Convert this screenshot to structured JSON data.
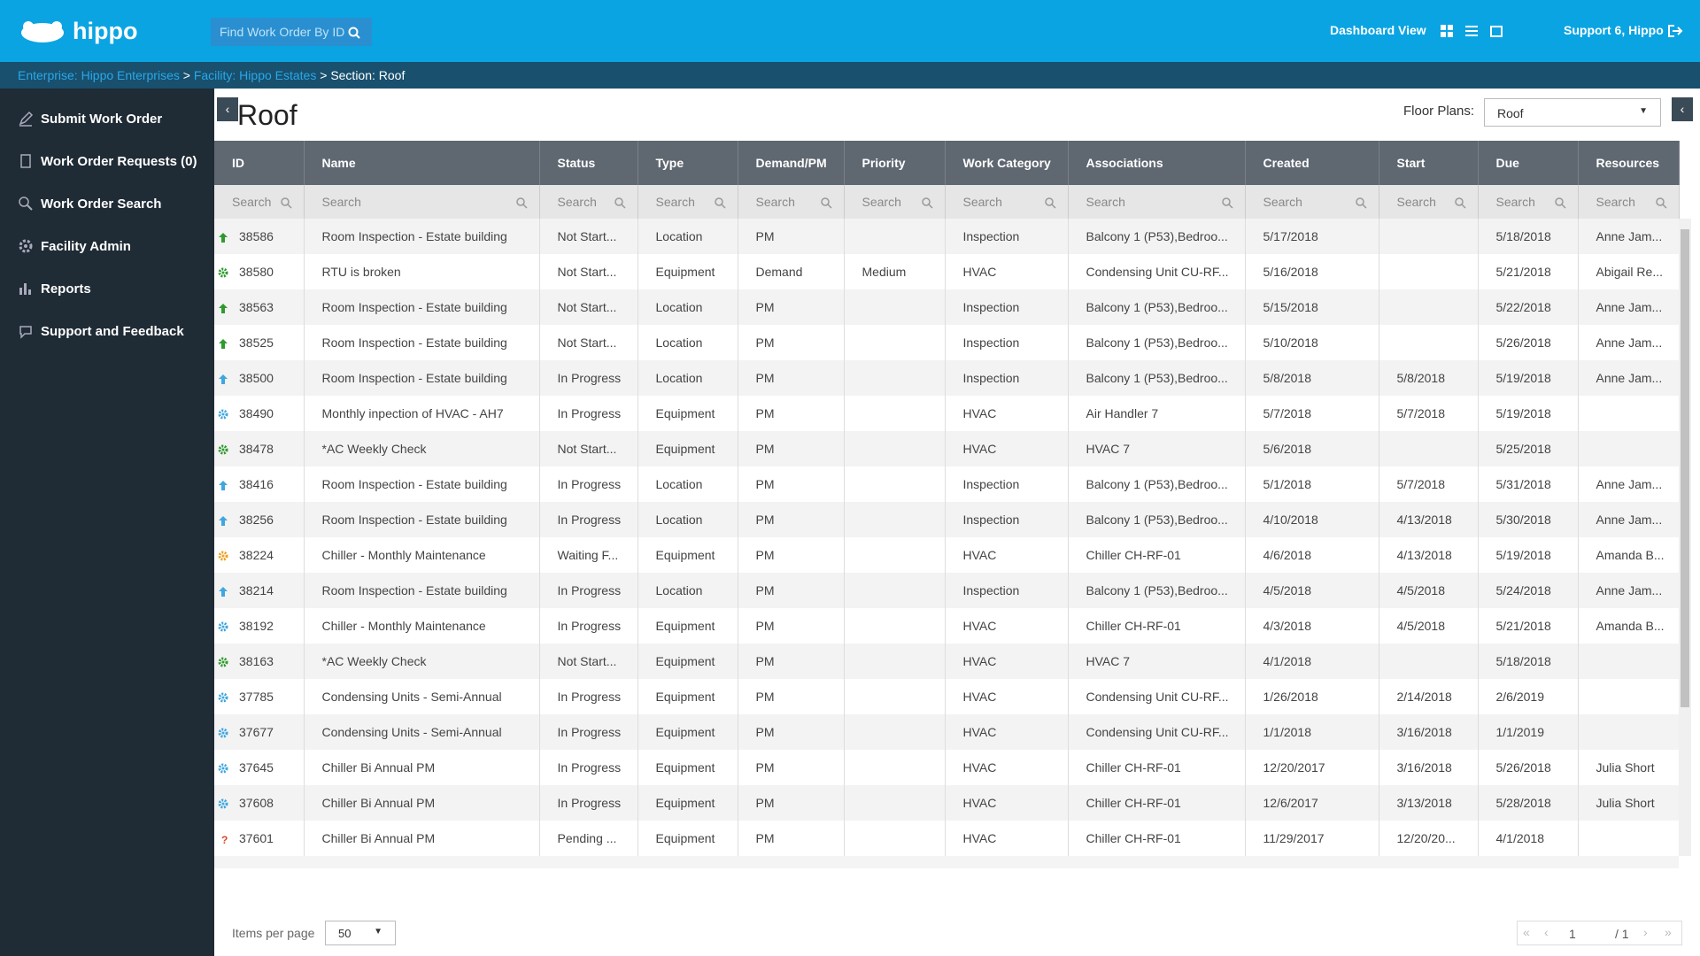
{
  "header": {
    "logo": "hippo",
    "search_placeholder": "Find Work Order By ID",
    "view": "Dashboard View",
    "user": "Support 6, Hippo"
  },
  "breadcrumb": [
    "Enterprise: Hippo Enterprises",
    "Facility: Hippo Estates",
    "Section: Roof"
  ],
  "sidebar": [
    "Submit Work Order",
    "Work Order Requests (0)",
    "Work Order Search",
    "Facility Admin",
    "Reports",
    "Support and Feedback"
  ],
  "title": "Roof",
  "floor_plans": {
    "label": "Floor Plans:",
    "value": "Roof"
  },
  "table": {
    "columns": [
      "ID",
      "Name",
      "Status",
      "Type",
      "Demand/PM",
      "Priority",
      "Work Category",
      "Associations",
      "Created",
      "Start",
      "Due",
      "Resources"
    ],
    "search_placeholder": "Search",
    "rows": [
      [
        "38586",
        "Room Inspection - Estate building",
        "Not Start...",
        "Location",
        "PM",
        null,
        "Inspection",
        "Balcony 1 (P53),Bedroo...",
        "5/17/2018",
        null,
        "5/18/2018",
        "Anne Jam..."
      ],
      [
        "38580",
        "RTU is broken",
        "Not Start...",
        "Equipment",
        "Demand",
        "Medium",
        "HVAC",
        "Condensing Unit CU-RF...",
        "5/16/2018",
        null,
        "5/21/2018",
        "Abigail Re..."
      ],
      [
        "38563",
        "Room Inspection - Estate building",
        "Not Start...",
        "Location",
        "PM",
        null,
        "Inspection",
        "Balcony 1 (P53),Bedroo...",
        "5/15/2018",
        null,
        "5/22/2018",
        "Anne Jam..."
      ],
      [
        "38525",
        "Room Inspection - Estate building",
        "Not Start...",
        "Location",
        "PM",
        null,
        "Inspection",
        "Balcony 1 (P53),Bedroo...",
        "5/10/2018",
        null,
        "5/26/2018",
        "Anne Jam..."
      ],
      [
        "38500",
        "Room Inspection - Estate building",
        "In Progress",
        "Location",
        "PM",
        null,
        "Inspection",
        "Balcony 1 (P53),Bedroo...",
        "5/8/2018",
        "5/8/2018",
        "5/19/2018",
        "Anne Jam..."
      ],
      [
        "38490",
        "Monthly inpection of HVAC - AH7",
        "In Progress",
        "Equipment",
        "PM",
        null,
        "HVAC",
        "Air Handler 7",
        "5/7/2018",
        "5/7/2018",
        "5/19/2018",
        null
      ],
      [
        "38478",
        "*AC Weekly Check",
        "Not Start...",
        "Equipment",
        "PM",
        null,
        "HVAC",
        "HVAC 7",
        "5/6/2018",
        null,
        "5/25/2018",
        null
      ],
      [
        "38416",
        "Room Inspection - Estate building",
        "In Progress",
        "Location",
        "PM",
        null,
        "Inspection",
        "Balcony 1 (P53),Bedroo...",
        "5/1/2018",
        "5/7/2018",
        "5/31/2018",
        "Anne Jam..."
      ],
      [
        "38256",
        "Room Inspection - Estate building",
        "In Progress",
        "Location",
        "PM",
        null,
        "Inspection",
        "Balcony 1 (P53),Bedroo...",
        "4/10/2018",
        "4/13/2018",
        "5/30/2018",
        "Anne Jam..."
      ],
      [
        "38224",
        "Chiller - Monthly Maintenance",
        "Waiting F...",
        "Equipment",
        "PM",
        null,
        "HVAC",
        "Chiller CH-RF-01",
        "4/6/2018",
        "4/13/2018",
        "5/19/2018",
        "Amanda B..."
      ],
      [
        "38214",
        "Room Inspection - Estate building",
        "In Progress",
        "Location",
        "PM",
        null,
        "Inspection",
        "Balcony 1 (P53),Bedroo...",
        "4/5/2018",
        "4/5/2018",
        "5/24/2018",
        "Anne Jam..."
      ],
      [
        "38192",
        "Chiller - Monthly Maintenance",
        "In Progress",
        "Equipment",
        "PM",
        null,
        "HVAC",
        "Chiller CH-RF-01",
        "4/3/2018",
        "4/5/2018",
        "5/21/2018",
        "Amanda B..."
      ],
      [
        "38163",
        "*AC Weekly Check",
        "Not Start...",
        "Equipment",
        "PM",
        null,
        "HVAC",
        "HVAC 7",
        "4/1/2018",
        null,
        "5/18/2018",
        null
      ],
      [
        "37785",
        "Condensing Units - Semi-Annual",
        "In Progress",
        "Equipment",
        "PM",
        null,
        "HVAC",
        "Condensing Unit CU-RF...",
        "1/26/2018",
        "2/14/2018",
        "2/6/2019",
        null
      ],
      [
        "37677",
        "Condensing Units - Semi-Annual",
        "In Progress",
        "Equipment",
        "PM",
        null,
        "HVAC",
        "Condensing Unit CU-RF...",
        "1/1/2018",
        "3/16/2018",
        "1/1/2019",
        null
      ],
      [
        "37645",
        "Chiller Bi Annual PM",
        "In Progress",
        "Equipment",
        "PM",
        null,
        "HVAC",
        "Chiller CH-RF-01",
        "12/20/2017",
        "3/16/2018",
        "5/26/2018",
        "Julia Short"
      ],
      [
        "37608",
        "Chiller Bi Annual PM",
        "In Progress",
        "Equipment",
        "PM",
        null,
        "HVAC",
        "Chiller CH-RF-01",
        "12/6/2017",
        "3/13/2018",
        "5/28/2018",
        "Julia Short"
      ],
      [
        "37601",
        "Chiller Bi Annual PM",
        "Pending ...",
        "Equipment",
        "PM",
        null,
        "HVAC",
        "Chiller CH-RF-01",
        "11/29/2017",
        "12/20/20...",
        "4/1/2018",
        null
      ]
    ]
  },
  "footer": {
    "items_per_page_label": "Items per page",
    "items_per_page": "50",
    "page": "1",
    "of_pages": "/ 1"
  }
}
